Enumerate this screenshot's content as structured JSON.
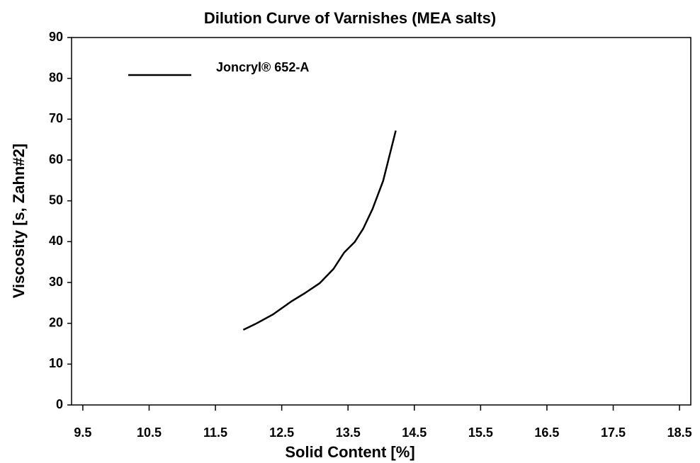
{
  "chart_data": {
    "type": "line",
    "title": "Dilution Curve of Varnishes (MEA salts)",
    "x_label": "Solid Content [%]",
    "y_label": "Viscosity [s, Zahn#2]",
    "series": [
      {
        "name": "Joncryl® 652-A",
        "color": "#000000",
        "x": [
          11.92,
          12.1,
          12.37,
          12.64,
          12.85,
          13.07,
          13.28,
          13.44,
          13.6,
          13.73,
          13.87,
          14.03,
          14.22
        ],
        "values": [
          18.4,
          19.8,
          22.2,
          25.3,
          27.4,
          29.8,
          33.3,
          37.3,
          39.9,
          43.2,
          48.0,
          54.9,
          67.2
        ]
      }
    ],
    "xlim": [
      9.33,
      18.67
    ],
    "xticks": [
      9.5,
      10.5,
      11.5,
      12.5,
      13.5,
      14.5,
      15.5,
      16.5,
      17.5,
      18.5
    ],
    "ylim": [
      0,
      90
    ],
    "yticks": [
      0,
      10,
      20,
      30,
      40,
      50,
      60,
      70,
      80,
      90
    ],
    "grid": false,
    "legend": "upper left"
  }
}
